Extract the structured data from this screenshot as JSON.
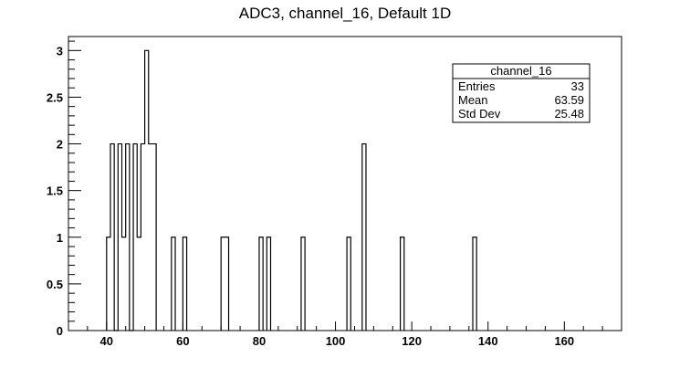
{
  "chart_data": {
    "type": "histogram",
    "title": "ADC3, channel_16, Default 1D",
    "xlabel": "",
    "ylabel": "",
    "xlim": [
      30,
      175
    ],
    "ylim": [
      0,
      3.15
    ],
    "grid": false,
    "bin_width": 1,
    "x_ticks": [
      40,
      60,
      80,
      100,
      120,
      140,
      160
    ],
    "x_tick_labels": [
      "40",
      "60",
      "80",
      "100",
      "120",
      "140",
      "160"
    ],
    "y_ticks": [
      0,
      0.5,
      1,
      1.5,
      2,
      2.5,
      3
    ],
    "y_tick_labels": [
      "0",
      "0.5",
      "1",
      "1.5",
      "2",
      "2.5",
      "3"
    ],
    "bins": [
      {
        "x": 40,
        "count": 1
      },
      {
        "x": 41,
        "count": 2
      },
      {
        "x": 42,
        "count": 0
      },
      {
        "x": 43,
        "count": 2
      },
      {
        "x": 44,
        "count": 1
      },
      {
        "x": 45,
        "count": 2
      },
      {
        "x": 46,
        "count": 0
      },
      {
        "x": 47,
        "count": 2
      },
      {
        "x": 48,
        "count": 1
      },
      {
        "x": 49,
        "count": 2
      },
      {
        "x": 50,
        "count": 3
      },
      {
        "x": 51,
        "count": 2
      },
      {
        "x": 52,
        "count": 2
      },
      {
        "x": 57,
        "count": 1
      },
      {
        "x": 60,
        "count": 1
      },
      {
        "x": 70,
        "count": 1
      },
      {
        "x": 71,
        "count": 1
      },
      {
        "x": 80,
        "count": 1
      },
      {
        "x": 82,
        "count": 1
      },
      {
        "x": 91,
        "count": 1
      },
      {
        "x": 103,
        "count": 1
      },
      {
        "x": 107,
        "count": 2
      },
      {
        "x": 117,
        "count": 1
      },
      {
        "x": 136,
        "count": 1
      }
    ],
    "stats_box": {
      "name": "channel_16",
      "placement": "top-right",
      "rows": [
        {
          "label": "Entries",
          "value": "33"
        },
        {
          "label": "Mean",
          "value": "63.59"
        },
        {
          "label": "Std Dev",
          "value": "25.48"
        }
      ]
    },
    "colors": {
      "line": "#000000",
      "background": "#ffffff"
    }
  }
}
